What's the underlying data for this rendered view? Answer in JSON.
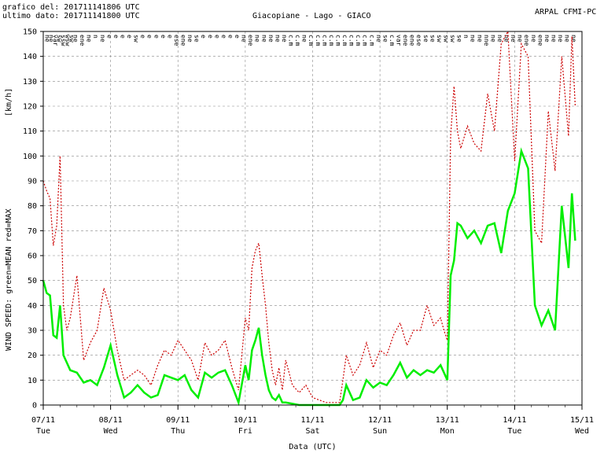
{
  "header": {
    "graph_line": "grafico del: 201711141806 UTC",
    "data_line": "ultimo dato: 201711141800 UTC",
    "station": "Giacopiane - Lago - GIACO",
    "org": "ARPAL CFMI-PC"
  },
  "chart_data": {
    "type": "line",
    "ylabel_left": "WIND SPEED: green=MEAN  red=MAX",
    "unit": "[km/h]",
    "xlabel": "Data (UTC)",
    "ylim": [
      0,
      150
    ],
    "yticks": [
      0,
      10,
      20,
      30,
      40,
      50,
      60,
      70,
      80,
      90,
      100,
      110,
      120,
      130,
      140,
      150
    ],
    "grid": true,
    "xlim_days": [
      0,
      8
    ],
    "day_ticks": [
      {
        "date": "07/11",
        "day": "Tue"
      },
      {
        "date": "08/11",
        "day": "Wed"
      },
      {
        "date": "09/11",
        "day": "Thu"
      },
      {
        "date": "10/11",
        "day": "Fri"
      },
      {
        "date": "11/11",
        "day": "Sat"
      },
      {
        "date": "12/11",
        "day": "Sun"
      },
      {
        "date": "13/11",
        "day": "Mon"
      },
      {
        "date": "14/11",
        "day": "Tue"
      },
      {
        "date": "15/11",
        "day": "Wed"
      }
    ],
    "colors": {
      "mean": "#00ee00",
      "max": "#cc0000",
      "grid": "#888888"
    },
    "direction_labels": {
      "x": [
        0.03,
        0.09,
        0.15,
        0.21,
        0.27,
        0.33,
        0.39,
        0.45,
        0.55,
        0.65,
        0.75,
        0.85,
        0.95,
        1.05,
        1.15,
        1.25,
        1.35,
        1.45,
        1.55,
        1.65,
        1.75,
        1.85,
        1.95,
        2.05,
        2.15,
        2.25,
        2.35,
        2.45,
        2.55,
        2.65,
        2.75,
        2.85,
        2.95,
        3.05,
        3.15,
        3.25,
        3.35,
        3.45,
        3.55,
        3.65,
        3.75,
        3.85,
        3.95,
        4.05,
        4.15,
        4.25,
        4.35,
        4.45,
        4.55,
        4.65,
        4.75,
        4.85,
        4.95,
        5.05,
        5.15,
        5.25,
        5.35,
        5.45,
        5.55,
        5.65,
        5.75,
        5.85,
        5.95,
        6.05,
        6.15,
        6.25,
        6.35,
        6.45,
        6.55,
        6.65,
        6.75,
        6.85,
        6.95,
        7.05,
        7.15,
        7.25,
        7.35,
        7.45,
        7.55,
        7.65,
        7.75,
        7.85
      ],
      "labels": [
        "ne",
        "ne",
        "var",
        "sw",
        "ssw",
        "wsw",
        "sw",
        "ne",
        "ene",
        "ne",
        "n",
        "ne",
        "e",
        "e",
        "e",
        "e",
        "sw",
        "e",
        "e",
        "e",
        "e",
        "e",
        "ese",
        "ene",
        "ne",
        "se",
        "e",
        "e",
        "e",
        "e",
        "e",
        "e",
        "ne",
        "ene",
        "ne",
        "ne",
        "ne",
        "ne",
        "ne",
        "c.m",
        "c.m",
        "ne",
        "c.m",
        "c.m",
        "c.m",
        "c.m",
        "c.m",
        "c.m",
        "c.m",
        "c.m",
        "c.m",
        "c.m",
        "ne",
        "se",
        "c.m",
        "var",
        "ene",
        "ene",
        "ese",
        "se",
        "se",
        "sw",
        "sw",
        "sw",
        "se",
        "n",
        "ne",
        "ne",
        "nne",
        "ne",
        "ne",
        "ne",
        "ne",
        "ne",
        "ene",
        "ne",
        "ene",
        "ne",
        "ne",
        "ne",
        "ne",
        "ne"
      ]
    },
    "series": [
      {
        "name": "MEAN",
        "x": [
          0,
          0.05,
          0.1,
          0.15,
          0.2,
          0.25,
          0.3,
          0.35,
          0.4,
          0.5,
          0.6,
          0.7,
          0.8,
          0.9,
          1.0,
          1.1,
          1.2,
          1.3,
          1.4,
          1.5,
          1.6,
          1.7,
          1.8,
          1.9,
          2.0,
          2.1,
          2.2,
          2.3,
          2.4,
          2.5,
          2.6,
          2.7,
          2.8,
          2.9,
          3.0,
          3.05,
          3.1,
          3.15,
          3.2,
          3.25,
          3.3,
          3.35,
          3.4,
          3.45,
          3.5,
          3.55,
          3.6,
          3.7,
          3.8,
          3.9,
          4.0,
          4.2,
          4.4,
          4.45,
          4.5,
          4.6,
          4.7,
          4.8,
          4.9,
          5.0,
          5.1,
          5.2,
          5.3,
          5.4,
          5.5,
          5.6,
          5.7,
          5.8,
          5.9,
          5.95,
          6.0,
          6.05,
          6.1,
          6.15,
          6.2,
          6.3,
          6.4,
          6.5,
          6.6,
          6.7,
          6.8,
          6.9,
          7.0,
          7.1,
          7.2,
          7.3,
          7.4,
          7.5,
          7.6,
          7.7,
          7.8,
          7.85,
          7.9
        ],
        "values": [
          50,
          45,
          44,
          28,
          27,
          40,
          20,
          17,
          14,
          13,
          9,
          10,
          8,
          15,
          24,
          12,
          3,
          5,
          8,
          5,
          3,
          4,
          12,
          11,
          10,
          12,
          6,
          3,
          13,
          11,
          13,
          14,
          8,
          1,
          16,
          10,
          22,
          26,
          31,
          20,
          12,
          6,
          3,
          2,
          4,
          1,
          1,
          0.5,
          0,
          0,
          0,
          0,
          0,
          2,
          8,
          2,
          3,
          10,
          7,
          9,
          8,
          12,
          17,
          11,
          14,
          12,
          14,
          13,
          16,
          13,
          10,
          52,
          58,
          73,
          72,
          67,
          70,
          65,
          72,
          73,
          61,
          78,
          85,
          102,
          95,
          40,
          32,
          38,
          30,
          80,
          55,
          85,
          66
        ]
      },
      {
        "name": "MAX",
        "x": [
          0,
          0.05,
          0.1,
          0.15,
          0.2,
          0.25,
          0.3,
          0.35,
          0.4,
          0.5,
          0.6,
          0.7,
          0.8,
          0.9,
          1.0,
          1.1,
          1.2,
          1.3,
          1.4,
          1.5,
          1.6,
          1.7,
          1.8,
          1.9,
          2.0,
          2.1,
          2.2,
          2.3,
          2.4,
          2.5,
          2.6,
          2.7,
          2.8,
          2.9,
          3.0,
          3.05,
          3.1,
          3.15,
          3.2,
          3.25,
          3.3,
          3.35,
          3.4,
          3.45,
          3.5,
          3.55,
          3.6,
          3.7,
          3.8,
          3.9,
          4.0,
          4.2,
          4.4,
          4.45,
          4.5,
          4.6,
          4.7,
          4.8,
          4.9,
          5.0,
          5.1,
          5.2,
          5.3,
          5.4,
          5.5,
          5.6,
          5.7,
          5.8,
          5.9,
          5.95,
          6.0,
          6.05,
          6.1,
          6.15,
          6.2,
          6.3,
          6.4,
          6.5,
          6.6,
          6.7,
          6.8,
          6.9,
          7.0,
          7.1,
          7.2,
          7.3,
          7.4,
          7.5,
          7.6,
          7.7,
          7.8,
          7.85,
          7.9
        ],
        "values": [
          90,
          86,
          83,
          64,
          72,
          100,
          40,
          30,
          35,
          52,
          18,
          25,
          30,
          47,
          38,
          22,
          10,
          12,
          14,
          12,
          8,
          16,
          22,
          20,
          26,
          22,
          18,
          10,
          25,
          20,
          22,
          26,
          15,
          6,
          35,
          30,
          55,
          62,
          65,
          52,
          40,
          25,
          14,
          8,
          15,
          6,
          18,
          8,
          5,
          8,
          3,
          1,
          1,
          10,
          20,
          12,
          16,
          25,
          15,
          22,
          20,
          28,
          33,
          24,
          30,
          30,
          40,
          32,
          35,
          30,
          26,
          108,
          128,
          110,
          103,
          112,
          105,
          102,
          125,
          110,
          145,
          150,
          98,
          145,
          140,
          70,
          65,
          118,
          94,
          140,
          108,
          148,
          120
        ]
      }
    ]
  }
}
